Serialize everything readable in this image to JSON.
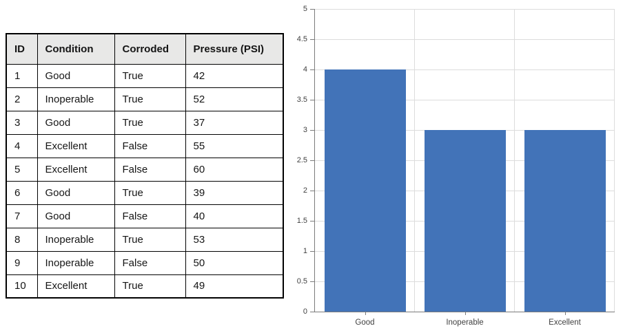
{
  "table": {
    "headers": [
      "ID",
      "Condition",
      "Corroded",
      "Pressure (PSI)"
    ],
    "rows": [
      [
        "1",
        "Good",
        "True",
        "42"
      ],
      [
        "2",
        "Inoperable",
        "True",
        "52"
      ],
      [
        "3",
        "Good",
        "True",
        "37"
      ],
      [
        "4",
        "Excellent",
        "False",
        "55"
      ],
      [
        "5",
        "Excellent",
        "False",
        "60"
      ],
      [
        "6",
        "Good",
        "True",
        "39"
      ],
      [
        "7",
        "Good",
        "False",
        "40"
      ],
      [
        "8",
        "Inoperable",
        "True",
        "53"
      ],
      [
        "9",
        "Inoperable",
        "False",
        "50"
      ],
      [
        "10",
        "Excellent",
        "True",
        "49"
      ]
    ],
    "header_bg": "#E8E8E7",
    "border_color": "#000000"
  },
  "chart_data": {
    "type": "bar",
    "categories": [
      "Good",
      "Inoperable",
      "Excellent"
    ],
    "values": [
      4,
      3,
      3
    ],
    "title": "",
    "xlabel": "",
    "ylabel": "",
    "ylim": [
      0,
      5
    ],
    "ytick_step": 0.5,
    "ytick_labels": [
      "0",
      "0.5",
      "1",
      "1.5",
      "2",
      "2.5",
      "3",
      "3.5",
      "4",
      "4.5",
      "5"
    ],
    "grid": "on",
    "legend": "none",
    "bar_color": "#4273B8",
    "gridline_color": "#DCDCDC",
    "axis_color": "#7A7A7A",
    "tick_label_color": "#404040"
  }
}
